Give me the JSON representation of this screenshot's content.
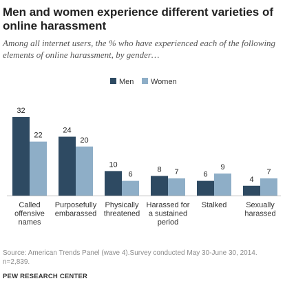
{
  "chart_data": {
    "type": "bar",
    "title": "Men and women experience different varieties of online harassment",
    "subtitle": "Among all internet users, the % who have experienced each of the following elements of online harassment, by gender…",
    "categories": [
      [
        "Called",
        "offensive",
        "names"
      ],
      [
        "Purposefully",
        "embarassed"
      ],
      [
        "Physically",
        "threatened"
      ],
      [
        "Harassed for",
        "a sustained",
        "period"
      ],
      [
        "Stalked"
      ],
      [
        "Sexually",
        "harassed"
      ]
    ],
    "series": [
      {
        "name": "Men",
        "color": "#2e4a62",
        "values": [
          32,
          24,
          10,
          8,
          6,
          4
        ]
      },
      {
        "name": "Women",
        "color": "#8eaec7",
        "values": [
          22,
          20,
          6,
          7,
          9,
          7
        ]
      }
    ],
    "ylim": [
      0,
      32
    ],
    "grid": false,
    "legend": "top-center"
  },
  "footer": {
    "source": "Source: American Trends Panel (wave 4).Survey conducted May 30-June 30, 2014. n=2,839.",
    "org": "PEW RESEARCH CENTER"
  }
}
